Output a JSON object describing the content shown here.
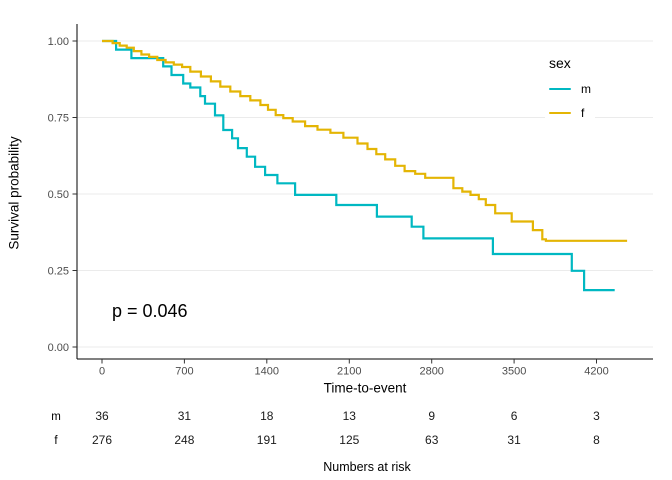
{
  "chart_data": {
    "type": "line",
    "variant": "kaplan_meier_step_survival",
    "title": "",
    "xlabel": "Time-to-event",
    "ylabel": "Survival probability",
    "x_ticks": [
      {
        "v": 0,
        "label": "0"
      },
      {
        "v": 700,
        "label": "700"
      },
      {
        "v": 1400,
        "label": "1400"
      },
      {
        "v": 2100,
        "label": "2100"
      },
      {
        "v": 2800,
        "label": "2800"
      },
      {
        "v": 3500,
        "label": "3500"
      },
      {
        "v": 4200,
        "label": "4200"
      }
    ],
    "y_ticks": [
      {
        "v": 0.0,
        "label": "0.00"
      },
      {
        "v": 0.25,
        "label": "0.25"
      },
      {
        "v": 0.5,
        "label": "0.50"
      },
      {
        "v": 0.75,
        "label": "0.75"
      },
      {
        "v": 1.0,
        "label": "1.00"
      }
    ],
    "xlim": [
      0,
      4700
    ],
    "ylim": [
      0,
      1.05
    ],
    "grid": "horizontal-major-only",
    "gridline_color": "#ebebeb",
    "axis_line_color": "#000000",
    "tick_label_color": "#4d4d4d",
    "legend": {
      "title": "sex",
      "position": "inside-top-right"
    },
    "annotation": {
      "text": "p = 0.046"
    },
    "series": [
      {
        "name": "m",
        "label": "m",
        "color": "#00B8C2",
        "points": [
          [
            0,
            1
          ],
          [
            120,
            0.972
          ],
          [
            250,
            0.944
          ],
          [
            520,
            0.917
          ],
          [
            590,
            0.889
          ],
          [
            690,
            0.861
          ],
          [
            750,
            0.848
          ],
          [
            835,
            0.82
          ],
          [
            875,
            0.795
          ],
          [
            960,
            0.757
          ],
          [
            1030,
            0.709
          ],
          [
            1105,
            0.682
          ],
          [
            1155,
            0.65
          ],
          [
            1230,
            0.622
          ],
          [
            1300,
            0.589
          ],
          [
            1385,
            0.562
          ],
          [
            1490,
            0.535
          ],
          [
            1640,
            0.497
          ],
          [
            1990,
            0.464
          ],
          [
            2335,
            0.426
          ],
          [
            2630,
            0.393
          ],
          [
            2730,
            0.355
          ],
          [
            3320,
            0.304
          ],
          [
            3990,
            0.249
          ],
          [
            4095,
            0.186
          ],
          [
            4355,
            0.186
          ]
        ]
      },
      {
        "name": "f",
        "label": "f",
        "color": "#E4B504",
        "points": [
          [
            0,
            1
          ],
          [
            90,
            0.993
          ],
          [
            150,
            0.985
          ],
          [
            210,
            0.978
          ],
          [
            270,
            0.967
          ],
          [
            335,
            0.956
          ],
          [
            400,
            0.948
          ],
          [
            470,
            0.938
          ],
          [
            540,
            0.93
          ],
          [
            610,
            0.923
          ],
          [
            680,
            0.915
          ],
          [
            750,
            0.9
          ],
          [
            840,
            0.884
          ],
          [
            925,
            0.868
          ],
          [
            1005,
            0.851
          ],
          [
            1090,
            0.835
          ],
          [
            1175,
            0.82
          ],
          [
            1260,
            0.806
          ],
          [
            1345,
            0.791
          ],
          [
            1410,
            0.775
          ],
          [
            1475,
            0.758
          ],
          [
            1540,
            0.748
          ],
          [
            1620,
            0.737
          ],
          [
            1725,
            0.722
          ],
          [
            1830,
            0.71
          ],
          [
            1940,
            0.7
          ],
          [
            2050,
            0.684
          ],
          [
            2170,
            0.665
          ],
          [
            2255,
            0.647
          ],
          [
            2330,
            0.63
          ],
          [
            2405,
            0.613
          ],
          [
            2490,
            0.592
          ],
          [
            2570,
            0.575
          ],
          [
            2660,
            0.566
          ],
          [
            2745,
            0.553
          ],
          [
            2985,
            0.519
          ],
          [
            3060,
            0.508
          ],
          [
            3130,
            0.497
          ],
          [
            3200,
            0.483
          ],
          [
            3260,
            0.464
          ],
          [
            3340,
            0.437
          ],
          [
            3480,
            0.41
          ],
          [
            3660,
            0.382
          ],
          [
            3740,
            0.352
          ],
          [
            3770,
            0.347
          ],
          [
            4460,
            0.347
          ]
        ]
      }
    ],
    "numbers_at_risk": {
      "caption": "Numbers at risk",
      "times": [
        0,
        700,
        1400,
        2100,
        2800,
        3500,
        4200
      ],
      "rows": [
        {
          "label": "m",
          "counts": [
            "36",
            "31",
            "18",
            "13",
            "9",
            "6",
            "3"
          ]
        },
        {
          "label": "f",
          "counts": [
            "276",
            "248",
            "191",
            "125",
            "63",
            "31",
            "8"
          ]
        }
      ]
    }
  }
}
